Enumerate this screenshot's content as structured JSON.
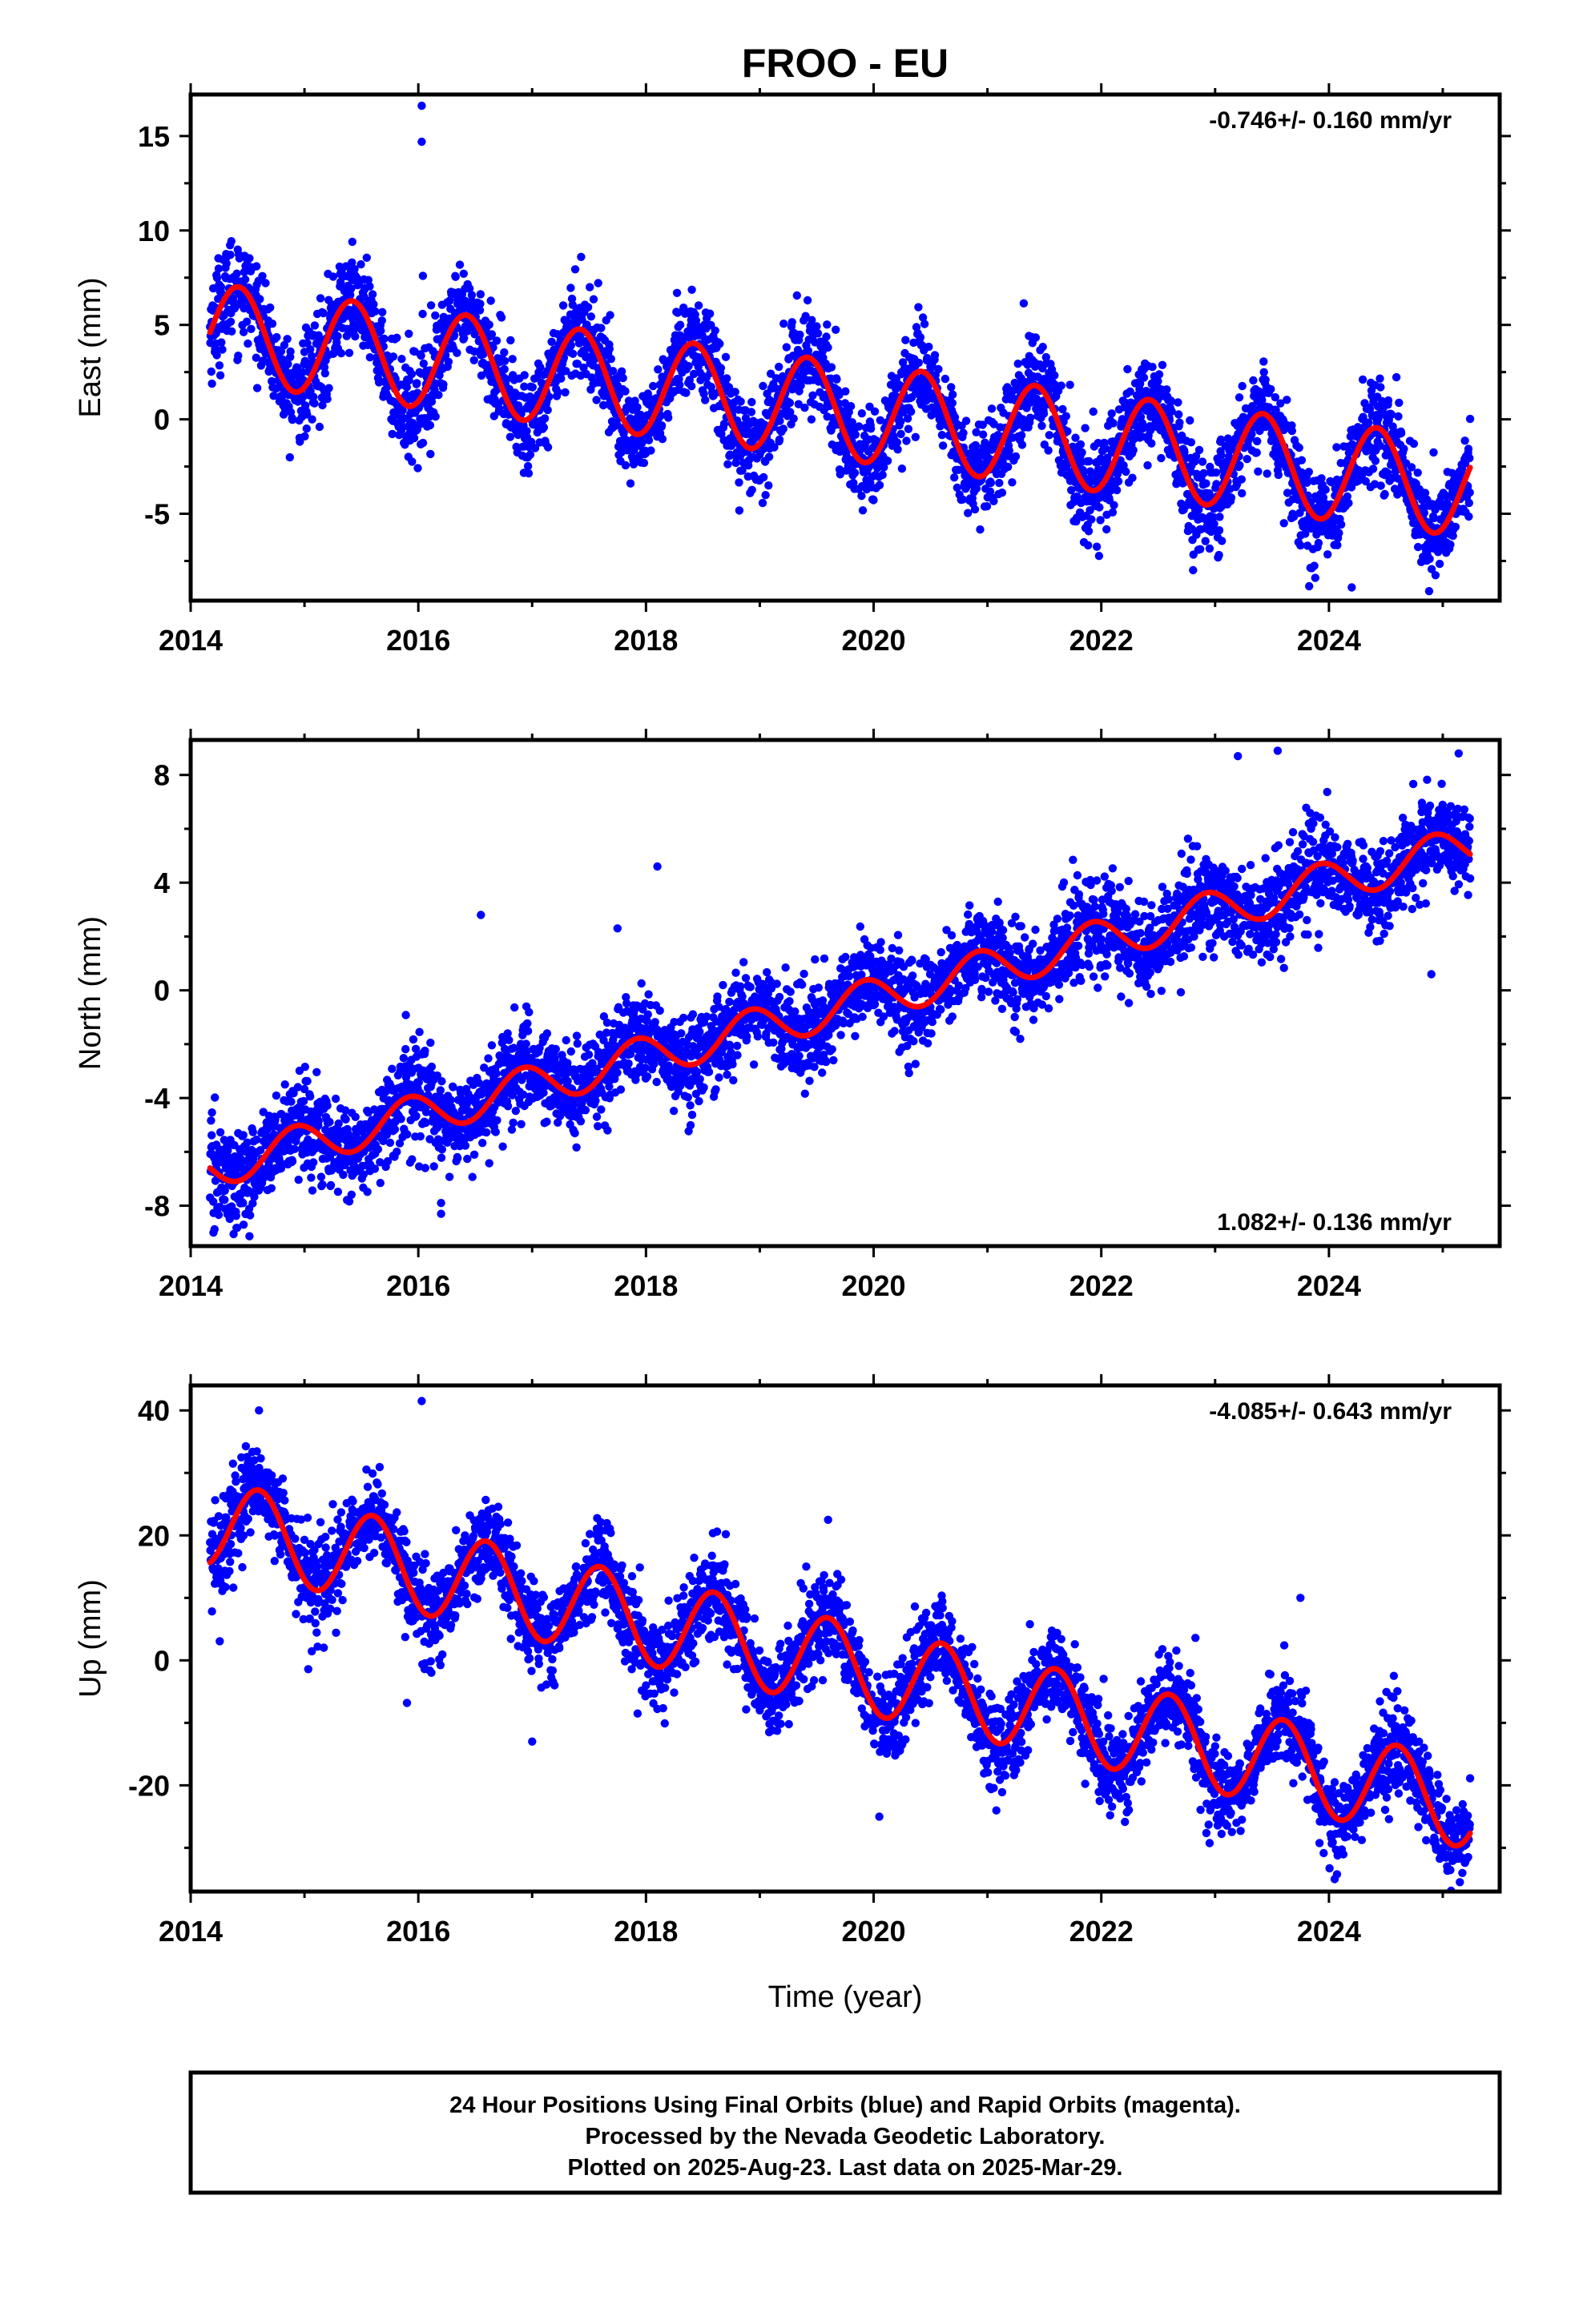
{
  "figure": {
    "title": "FROO - EU",
    "footer": [
      "24 Hour Positions Using Final Orbits (blue) and Rapid Orbits (magenta).",
      "Processed by the Nevada Geodetic Laboratory.",
      "Plotted on 2025-Aug-23. Last data on 2025-Mar-29."
    ]
  },
  "colors": {
    "points": "#0000ff",
    "fit": "#ff0000",
    "frame": "#000000"
  },
  "chart_data": [
    {
      "type": "scatter",
      "ylabel": "East (mm)",
      "xlabel": "",
      "rate": "-0.746+/- 0.160 mm/yr",
      "rate_position": "top-right",
      "xlim": [
        2014.0,
        2025.5
      ],
      "ylim": [
        -9.6,
        17.2
      ],
      "x_ticks": [
        2014,
        2016,
        2018,
        2020,
        2022,
        2024
      ],
      "x_tick_labels": [
        "2014",
        "2016",
        "2018",
        "2020",
        "2022",
        "2024"
      ],
      "y_ticks": [
        15,
        10,
        5,
        0,
        -5
      ],
      "y_tick_labels": [
        "15",
        "10",
        "5",
        "0",
        "-5"
      ],
      "series": [
        {
          "kind": "points",
          "x_start": 2014.17,
          "x_end": 2025.24,
          "trend": {
            "intercept_at_start": 4.6,
            "rate": -0.746
          },
          "annual": {
            "amplitude": 2.6,
            "peak_phase": 0.42
          },
          "scatter_sd": 1.25,
          "outliers": [
            {
              "x": 2016.03,
              "y": 16.6
            },
            {
              "x": 2016.03,
              "y": 14.7
            },
            {
              "x": 2016.04,
              "y": 7.6
            },
            {
              "x": 2015.42,
              "y": 9.4
            },
            {
              "x": 2017.43,
              "y": 8.6
            },
            {
              "x": 2019.42,
              "y": 6.3
            },
            {
              "x": 2024.88,
              "y": -9.1
            },
            {
              "x": 2024.2,
              "y": -8.9
            }
          ]
        },
        {
          "kind": "fit",
          "x_start": 2014.17,
          "x_end": 2025.24,
          "trend": {
            "intercept_at_start": 4.6,
            "rate": -0.746
          },
          "annual": {
            "amplitude": 2.6,
            "peak_phase": 0.42
          }
        }
      ]
    },
    {
      "type": "scatter",
      "ylabel": "North (mm)",
      "xlabel": "",
      "rate": "1.082+/- 0.136 mm/yr",
      "rate_position": "bottom-right",
      "xlim": [
        2014.0,
        2025.5
      ],
      "ylim": [
        -9.5,
        9.3
      ],
      "x_ticks": [
        2014,
        2016,
        2018,
        2020,
        2022,
        2024
      ],
      "x_tick_labels": [
        "2014",
        "2016",
        "2018",
        "2020",
        "2022",
        "2024"
      ],
      "y_ticks": [
        8,
        4,
        0,
        -4,
        -8
      ],
      "y_tick_labels": [
        "8",
        "4",
        "0",
        "-4",
        "-8"
      ],
      "series": [
        {
          "kind": "points",
          "x_start": 2014.17,
          "x_end": 2025.24,
          "trend": {
            "intercept_at_start": -6.6,
            "rate": 1.082
          },
          "annual": {
            "amplitude": 0.75,
            "peak_phase": 0.92
          },
          "scatter_sd": 0.85,
          "outliers": [
            {
              "x": 2016.55,
              "y": 2.8
            },
            {
              "x": 2016.2,
              "y": -8.3
            },
            {
              "x": 2016.2,
              "y": -7.9
            },
            {
              "x": 2018.1,
              "y": 4.6
            },
            {
              "x": 2017.75,
              "y": 2.3
            },
            {
              "x": 2023.2,
              "y": 8.7
            },
            {
              "x": 2023.55,
              "y": 8.9
            },
            {
              "x": 2024.9,
              "y": 0.6
            },
            {
              "x": 2014.2,
              "y": -9.0
            },
            {
              "x": 2025.14,
              "y": 8.8
            }
          ]
        },
        {
          "kind": "fit",
          "x_start": 2014.17,
          "x_end": 2025.24,
          "trend": {
            "intercept_at_start": -6.6,
            "rate": 1.082
          },
          "annual": {
            "amplitude": 0.75,
            "peak_phase": 0.92
          }
        }
      ]
    },
    {
      "type": "scatter",
      "ylabel": "Up (mm)",
      "xlabel": "Time (year)",
      "rate": "-4.085+/- 0.643 mm/yr",
      "rate_position": "top-right",
      "xlim": [
        2014.0,
        2025.5
      ],
      "ylim": [
        -37,
        44
      ],
      "x_ticks": [
        2014,
        2016,
        2018,
        2020,
        2022,
        2024
      ],
      "x_tick_labels": [
        "2014",
        "2016",
        "2018",
        "2020",
        "2022",
        "2024"
      ],
      "y_ticks": [
        40,
        20,
        0,
        -20
      ],
      "y_tick_labels": [
        "40",
        "20",
        "0",
        "-20"
      ],
      "series": [
        {
          "kind": "points",
          "x_start": 2014.17,
          "x_end": 2025.24,
          "trend": {
            "intercept_at_start": 22.0,
            "rate": -4.085
          },
          "annual": {
            "amplitude": 7.0,
            "peak_phase": 0.6
          },
          "scatter_sd": 3.6,
          "outliers": [
            {
              "x": 2016.03,
              "y": 41.5
            },
            {
              "x": 2015.9,
              "y": -6.8
            },
            {
              "x": 2017.0,
              "y": -13.0
            },
            {
              "x": 2019.6,
              "y": 22.5
            },
            {
              "x": 2020.05,
              "y": -25.0
            },
            {
              "x": 2023.75,
              "y": 10.0
            },
            {
              "x": 2024.05,
              "y": -35.0
            },
            {
              "x": 2025.15,
              "y": -35.5
            },
            {
              "x": 2014.6,
              "y": 40.0
            }
          ]
        },
        {
          "kind": "fit",
          "x_start": 2014.17,
          "x_end": 2025.24,
          "trend": {
            "intercept_at_start": 22.0,
            "rate": -4.085
          },
          "annual": {
            "amplitude": 7.0,
            "peak_phase": 0.6
          }
        }
      ]
    }
  ]
}
